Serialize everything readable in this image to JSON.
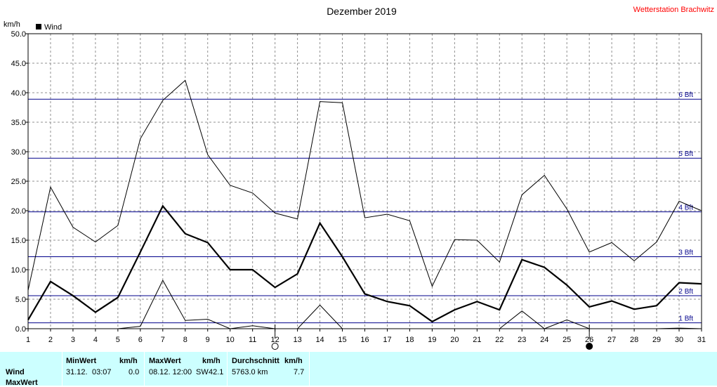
{
  "header": {
    "title": "Dezember 2019",
    "station": "Wetterstation Brachwitz"
  },
  "chart_data": {
    "type": "line",
    "title": "Dezember 2019",
    "ylabel": "km/h",
    "ylim": [
      0,
      50
    ],
    "xlim": [
      1,
      31
    ],
    "grid": true,
    "legend": {
      "label": "Wind",
      "placement": "top-left"
    },
    "x": [
      1,
      2,
      3,
      4,
      5,
      6,
      7,
      8,
      9,
      10,
      11,
      12,
      13,
      14,
      15,
      16,
      17,
      18,
      19,
      20,
      21,
      22,
      23,
      24,
      25,
      26,
      27,
      28,
      29,
      30,
      31
    ],
    "y_ticks": [
      "0.0",
      "5.0",
      "10.0",
      "15.0",
      "20.0",
      "25.0",
      "30.0",
      "35.0",
      "40.0",
      "45.0",
      "50.0"
    ],
    "series": [
      {
        "name": "Wind",
        "role": "mean",
        "values": [
          1.5,
          8.0,
          5.6,
          2.8,
          5.3,
          13.0,
          20.8,
          16.1,
          14.6,
          10.0,
          10.0,
          7.0,
          9.3,
          17.9,
          12.2,
          5.9,
          4.6,
          3.9,
          1.2,
          3.2,
          4.6,
          3.2,
          11.7,
          10.4,
          7.4,
          3.7,
          4.7,
          3.3,
          3.9,
          7.8,
          7.6
        ]
      },
      {
        "role": "max",
        "values": [
          6.5,
          24.0,
          17.2,
          14.7,
          17.5,
          32.2,
          38.7,
          42.1,
          29.5,
          24.3,
          23.0,
          19.6,
          18.6,
          38.5,
          38.3,
          18.8,
          19.4,
          18.3,
          7.2,
          15.1,
          15.0,
          11.3,
          22.7,
          26.0,
          20.3,
          13.0,
          14.6,
          11.5,
          14.7,
          21.6,
          20.0
        ]
      },
      {
        "role": "min",
        "values": [
          0.0,
          0.0,
          0.0,
          0.0,
          0.0,
          0.4,
          8.2,
          1.4,
          1.6,
          0.0,
          0.5,
          0.0,
          0.0,
          4.0,
          0.0,
          0.0,
          0.0,
          0.0,
          0.0,
          0.0,
          0.0,
          0.0,
          3.0,
          0.0,
          1.5,
          0.0,
          0.0,
          0.0,
          0.0,
          0.1,
          0.0
        ]
      }
    ],
    "beaufort_lines": [
      {
        "label": "1 Bft",
        "value": 1.0
      },
      {
        "label": "2 Bft",
        "value": 5.6
      },
      {
        "label": "3 Bft",
        "value": 12.2
      },
      {
        "label": "4 Bft",
        "value": 19.8
      },
      {
        "label": "5 Bft",
        "value": 28.9
      },
      {
        "label": "6 Bft",
        "value": 38.9
      }
    ],
    "moon_phases": [
      {
        "day": 12,
        "phase": "full"
      },
      {
        "day": 26,
        "phase": "new"
      }
    ],
    "colors": {
      "beaufort": "#00008b",
      "series": "#000000",
      "grid": "#909090"
    }
  },
  "stats": {
    "row_label": "Wind",
    "row_label_2": "MaxWert",
    "min": {
      "header": "MinWert",
      "unit": "km/h",
      "date": "31.12.",
      "time": "03:07",
      "value": "0.0"
    },
    "max": {
      "header": "MaxWert",
      "unit": "km/h",
      "datetime": "08.12.  12:00",
      "direction": "SW",
      "value": "42.1"
    },
    "avg": {
      "header": "Durchschnitt",
      "unit": "km/h",
      "distance": "5763.0 km",
      "value": "7.7"
    }
  }
}
